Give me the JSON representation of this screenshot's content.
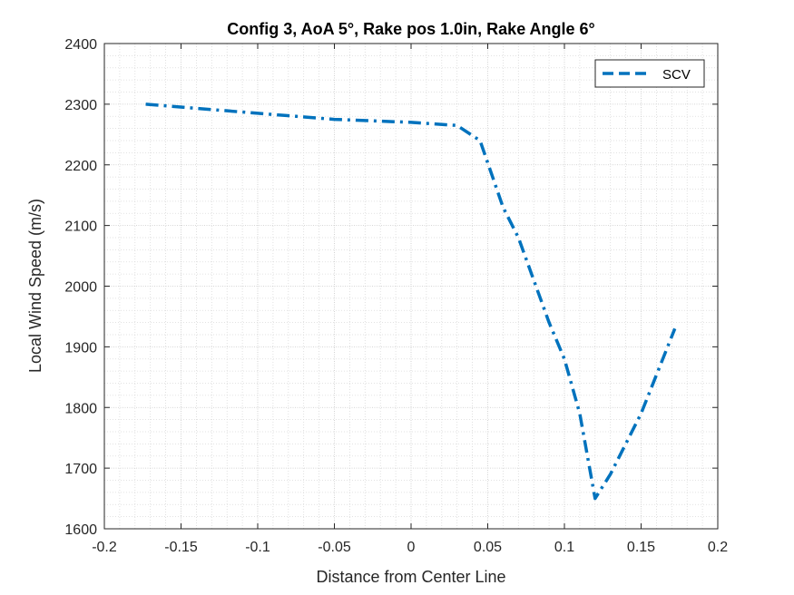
{
  "chart_data": {
    "type": "line",
    "title": "Config 3, AoA 5°, Rake pos 1.0in, Rake Angle 6°",
    "xlabel": "Distance from Center Line",
    "ylabel": "Local Wind Speed (m/s)",
    "xlim": [
      -0.2,
      0.2
    ],
    "ylim": [
      1600,
      2400
    ],
    "xticks": [
      -0.2,
      -0.15,
      -0.1,
      -0.05,
      0,
      0.05,
      0.1,
      0.15,
      0.2
    ],
    "xtick_labels": [
      "-0.2",
      "-0.15",
      "-0.1",
      "-0.05",
      "0",
      "0.05",
      "0.1",
      "0.15",
      "0.2"
    ],
    "yticks": [
      1600,
      1700,
      1800,
      1900,
      2000,
      2100,
      2200,
      2300,
      2400
    ],
    "ytick_labels": [
      "1600",
      "1700",
      "1800",
      "1900",
      "2000",
      "2100",
      "2200",
      "2300",
      "2400"
    ],
    "grid": true,
    "minor_grid": true,
    "legend": "top-right",
    "series": [
      {
        "name": "SCV",
        "color": "#0072BD",
        "x": [
          -0.173,
          -0.1,
          -0.05,
          0,
          0.03,
          0.045,
          0.06,
          0.07,
          0.08,
          0.09,
          0.1,
          0.11,
          0.12,
          0.13,
          0.15,
          0.172
        ],
        "y": [
          2300,
          2285,
          2275,
          2270,
          2265,
          2240,
          2130,
          2080,
          2010,
          1940,
          1880,
          1790,
          1650,
          1690,
          1790,
          1930
        ]
      }
    ]
  }
}
